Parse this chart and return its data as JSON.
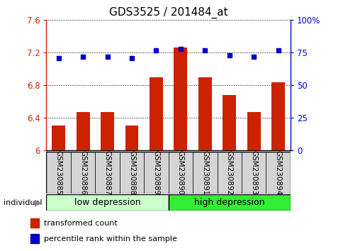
{
  "title": "GDS3525 / 201484_at",
  "samples": [
    "GSM230885",
    "GSM230886",
    "GSM230887",
    "GSM230888",
    "GSM230889",
    "GSM230890",
    "GSM230891",
    "GSM230892",
    "GSM230893",
    "GSM230894"
  ],
  "bar_values": [
    6.31,
    6.47,
    6.47,
    6.31,
    6.9,
    7.26,
    6.9,
    6.68,
    6.47,
    6.84
  ],
  "dot_values": [
    71,
    72,
    72,
    71,
    77,
    78,
    77,
    73,
    72,
    77
  ],
  "ylim_left": [
    6.0,
    7.6
  ],
  "ylim_right": [
    0,
    100
  ],
  "yticks_left": [
    6.0,
    6.4,
    6.8,
    7.2,
    7.6
  ],
  "ytick_labels_left": [
    "6",
    "6.4",
    "6.8",
    "7.2",
    "7.6"
  ],
  "yticks_right": [
    0,
    25,
    50,
    75,
    100
  ],
  "ytick_labels_right": [
    "0",
    "25",
    "50",
    "75",
    "100%"
  ],
  "groups": [
    {
      "label": "low depression",
      "start": 0,
      "end": 5,
      "color": "#ccffcc"
    },
    {
      "label": "high depression",
      "start": 5,
      "end": 10,
      "color": "#33ee33"
    }
  ],
  "bar_color": "#cc2200",
  "dot_color": "#0000cc",
  "bar_width": 0.55,
  "bg_color": "#ffffff",
  "tick_label_box_color": "#d4d4d4",
  "legend_items": [
    {
      "label": "transformed count",
      "color": "#cc2200"
    },
    {
      "label": "percentile rank within the sample",
      "color": "#0000cc"
    }
  ],
  "individual_label": "individual",
  "title_fontsize": 11,
  "axis_fontsize": 8.5,
  "sample_fontsize": 7.5,
  "group_fontsize": 9
}
